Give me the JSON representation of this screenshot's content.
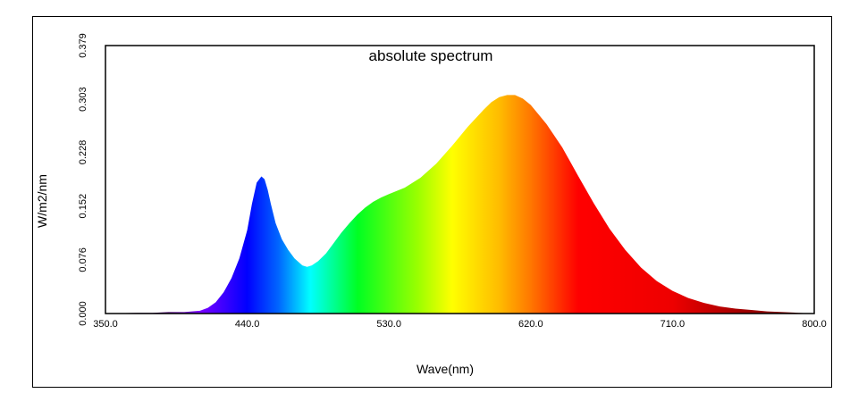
{
  "chart_data": {
    "type": "area",
    "title": "absolute spectrum",
    "xlabel": "Wave(nm)",
    "ylabel": "W/m2/nm",
    "xlim": [
      350,
      800
    ],
    "ylim": [
      0,
      0.379
    ],
    "x_ticks": [
      "350.0",
      "440.0",
      "530.0",
      "620.0",
      "710.0",
      "800.0"
    ],
    "y_ticks": [
      "0.000",
      "0.076",
      "0.152",
      "0.228",
      "0.303",
      "0.379"
    ],
    "grid": false,
    "fill": "visible-spectrum gradient",
    "series": [
      {
        "x": [
          350,
          370,
          380,
          390,
          400,
          410,
          415,
          420,
          425,
          430,
          435,
          440,
          443,
          446,
          449,
          451,
          453,
          455,
          458,
          462,
          466,
          470,
          475,
          478,
          481,
          485,
          490,
          495,
          500,
          505,
          510,
          515,
          520,
          525,
          530,
          540,
          550,
          560,
          570,
          580,
          590,
          595,
          600,
          605,
          610,
          615,
          620,
          630,
          640,
          650,
          660,
          670,
          680,
          690,
          700,
          710,
          720,
          730,
          740,
          750,
          760,
          770,
          780,
          790,
          800
        ],
        "y": [
          0.0,
          0.001,
          0.001,
          0.002,
          0.002,
          0.004,
          0.008,
          0.016,
          0.03,
          0.05,
          0.078,
          0.118,
          0.155,
          0.185,
          0.194,
          0.19,
          0.175,
          0.155,
          0.128,
          0.105,
          0.09,
          0.078,
          0.068,
          0.066,
          0.068,
          0.074,
          0.085,
          0.1,
          0.115,
          0.128,
          0.14,
          0.15,
          0.158,
          0.164,
          0.169,
          0.178,
          0.192,
          0.212,
          0.237,
          0.264,
          0.288,
          0.299,
          0.306,
          0.309,
          0.309,
          0.304,
          0.295,
          0.268,
          0.235,
          0.195,
          0.156,
          0.12,
          0.09,
          0.065,
          0.046,
          0.032,
          0.022,
          0.015,
          0.01,
          0.007,
          0.005,
          0.003,
          0.002,
          0.001,
          0.0
        ]
      }
    ]
  }
}
